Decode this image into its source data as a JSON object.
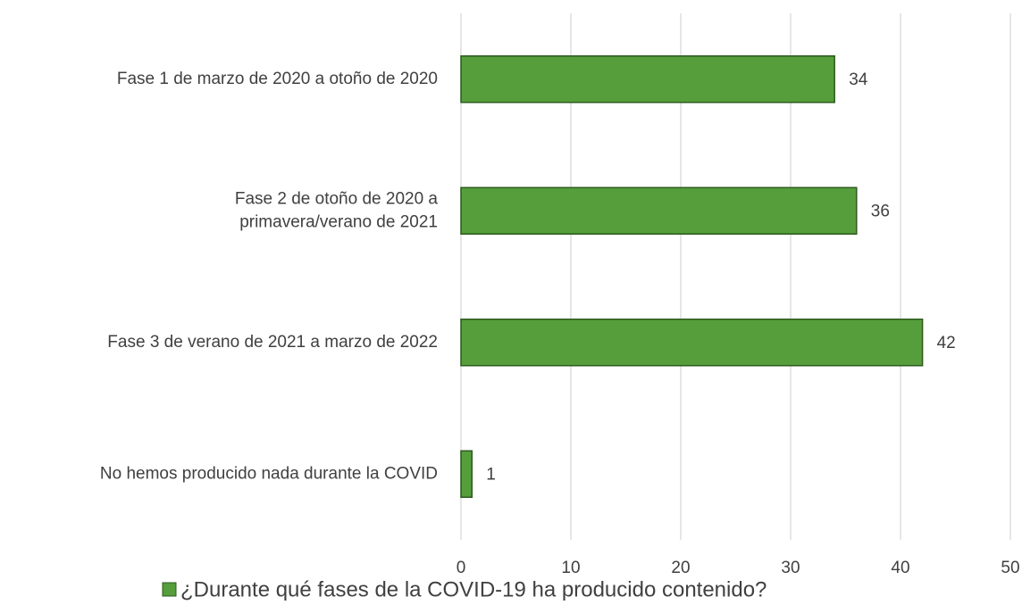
{
  "chart_data": {
    "type": "barh",
    "categories": [
      "Fase 1 de marzo de 2020 a otoño de 2020",
      "Fase 2 de otoño de 2020 a\nprimavera/verano de 2021",
      "Fase 3 de verano de 2021 a marzo de 2022",
      "No hemos producido nada durante la COVID"
    ],
    "series": [
      {
        "name": "¿Durante qué fases de la COVID-19 ha producido contenido?",
        "color": "#559e3b",
        "values": [
          34,
          36,
          42,
          1
        ]
      }
    ],
    "xlim": [
      0,
      50
    ],
    "xticks": [
      0,
      10,
      20,
      30,
      40,
      50
    ],
    "grid": true,
    "legend": "bottom"
  }
}
